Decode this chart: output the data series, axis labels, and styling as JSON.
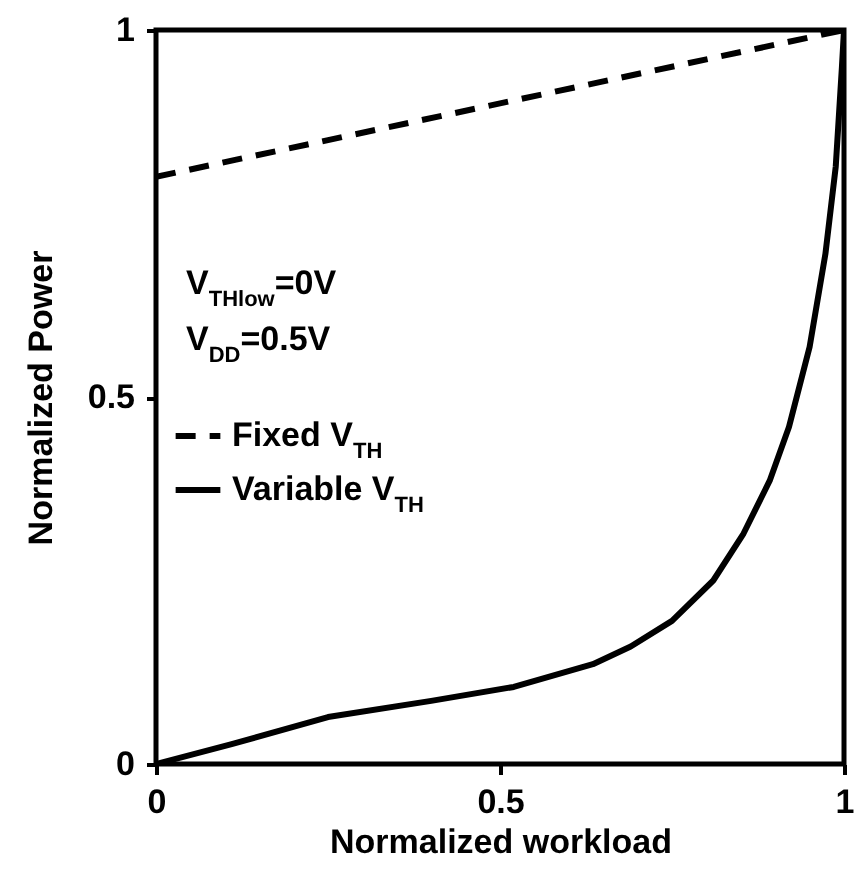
{
  "chart_data": {
    "type": "line",
    "xlabel": "Normalized workload",
    "ylabel": "Normalized Power",
    "xlim": [
      0,
      1
    ],
    "ylim": [
      0,
      1
    ],
    "xticks": [
      0,
      0.5,
      1
    ],
    "yticks": [
      0,
      0.5,
      1
    ],
    "grid": false,
    "legend": "left",
    "marker": "none",
    "annotations": [
      "V$_{THlow}$=0V",
      "V$_{DD}$=0.5V"
    ],
    "series": [
      {
        "name": "Fixed V$_{TH}$",
        "color": "#000000",
        "line_style": "dashed",
        "x": [
          0,
          1
        ],
        "values": [
          0.8,
          1
        ]
      },
      {
        "name": "Variable V$_{TH}$",
        "color": "#000000",
        "line_style": "solid",
        "x": [
          0,
          0.11,
          0.25,
          0.4,
          0.52,
          0.635,
          0.69,
          0.75,
          0.81,
          0.854,
          0.892,
          0.92,
          0.95,
          0.973,
          0.988,
          0.997,
          1
        ],
        "values": [
          0,
          0.027,
          0.064,
          0.086,
          0.105,
          0.136,
          0.16,
          0.195,
          0.25,
          0.314,
          0.386,
          0.459,
          0.568,
          0.695,
          0.814,
          0.95,
          1
        ]
      }
    ]
  }
}
